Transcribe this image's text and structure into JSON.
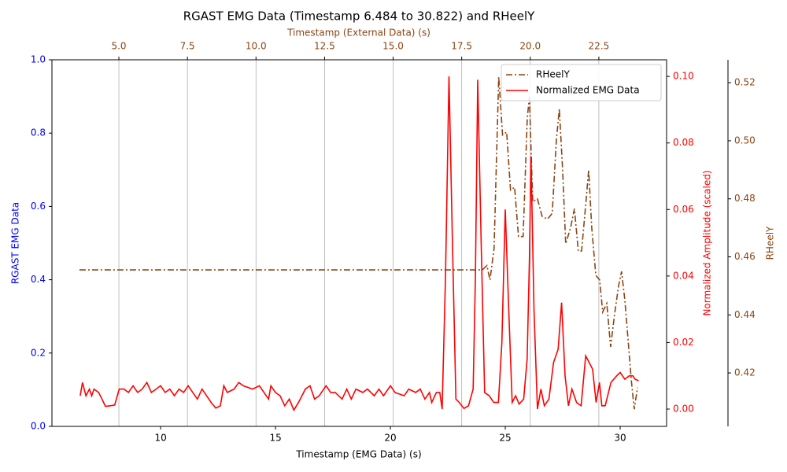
{
  "chart_data": {
    "type": "line",
    "title": "RGAST EMG Data (Timestamp 6.484 to 30.822) and RHeelY",
    "x_label": "Timestamp (EMG Data) (s)",
    "x2_label": "Timestamp (External Data) (s)",
    "y_label": "RGAST EMG Data",
    "y2_label": "Normalized Amplitude (scaled)",
    "y3_label": "RHeelY",
    "xlim": [
      5.27,
      32.02
    ],
    "xticks": [
      10,
      15,
      20,
      25,
      30
    ],
    "x2lim": [
      2.56,
      24.97
    ],
    "x2ticks": [
      {
        "value": 5,
        "label": "5.0"
      },
      7.5,
      {
        "value": 10,
        "label": "10.0"
      },
      12.5,
      {
        "value": 15,
        "label": "15.0"
      },
      17.5,
      {
        "value": 20,
        "label": "20.0"
      },
      22.5
    ],
    "ylim": [
      0,
      1
    ],
    "yticks": [
      {
        "value": 0,
        "label": "0.0"
      },
      0.2,
      0.4,
      0.6,
      0.8,
      {
        "value": 1,
        "label": "1.0"
      }
    ],
    "y2lim": [
      -0.0052,
      0.105
    ],
    "y2ticks": [
      {
        "value": 0,
        "label": "0.00"
      },
      {
        "value": 0.02,
        "label": "0.02"
      },
      {
        "value": 0.04,
        "label": "0.04"
      },
      {
        "value": 0.06,
        "label": "0.06"
      },
      {
        "value": 0.08,
        "label": "0.08"
      },
      {
        "value": 0.1,
        "label": "0.10"
      }
    ],
    "y3lim": [
      0.4016,
      0.5279
    ],
    "y3ticks": [
      0.42,
      0.44,
      0.46,
      0.48,
      {
        "value": 0.5,
        "label": "0.50"
      },
      0.52
    ],
    "grid": "x2",
    "legend": "upper right",
    "series": [
      {
        "name": "RHeelY",
        "color": "#8b4513",
        "linestyle": "dashdot",
        "xaxis": "x2",
        "axis": "y3",
        "x": [
          3.56,
          18.25,
          18.42,
          18.53,
          18.68,
          18.85,
          18.99,
          19.14,
          19.28,
          19.43,
          19.57,
          19.74,
          19.89,
          19.97,
          20.09,
          20.26,
          20.43,
          20.63,
          20.8,
          20.95,
          21.06,
          21.18,
          21.29,
          21.47,
          21.61,
          21.75,
          21.87,
          22.04,
          22.13,
          22.24,
          22.39,
          22.53,
          22.64,
          22.79,
          22.93,
          23.07,
          23.22,
          23.33,
          23.45,
          23.56,
          23.68,
          23.79,
          23.91
        ],
        "values": [
          0.4555,
          0.4555,
          0.457,
          0.452,
          0.463,
          0.522,
          0.502,
          0.503,
          0.483,
          0.484,
          0.467,
          0.467,
          0.508,
          0.515,
          0.479,
          0.48,
          0.474,
          0.473,
          0.475,
          0.5,
          0.511,
          0.49,
          0.4645,
          0.47,
          0.4766,
          0.462,
          0.462,
          0.48,
          0.49,
          0.47,
          0.4536,
          0.452,
          0.441,
          0.444,
          0.429,
          0.44,
          0.45,
          0.455,
          0.445,
          0.432,
          0.418,
          0.4075,
          0.415
        ]
      },
      {
        "name": "Normalized EMG Data",
        "color": "#ff0000",
        "linestyle": "solid",
        "xaxis": "x",
        "axis": "y2",
        "x": [
          6.5,
          6.6,
          6.75,
          6.9,
          7.0,
          7.1,
          7.3,
          7.45,
          7.6,
          7.8,
          8.0,
          8.2,
          8.4,
          8.6,
          8.8,
          9.0,
          9.2,
          9.4,
          9.6,
          9.8,
          10.0,
          10.2,
          10.4,
          10.6,
          10.8,
          11.0,
          11.2,
          11.4,
          11.6,
          11.8,
          12.0,
          12.2,
          12.4,
          12.6,
          12.75,
          12.9,
          13.2,
          13.4,
          13.6,
          14.0,
          14.3,
          14.5,
          14.7,
          14.8,
          15.0,
          15.2,
          15.4,
          15.6,
          15.8,
          16.0,
          16.3,
          16.5,
          16.7,
          16.9,
          17.2,
          17.4,
          17.6,
          17.9,
          18.1,
          18.3,
          18.5,
          18.8,
          19.0,
          19.3,
          19.5,
          19.7,
          20.0,
          20.2,
          20.6,
          20.8,
          21.1,
          21.3,
          21.5,
          21.7,
          21.8,
          22.0,
          22.15,
          22.25,
          22.4,
          22.55,
          22.7,
          22.85,
          23.0,
          23.2,
          23.4,
          23.6,
          23.7,
          23.8,
          23.95,
          24.1,
          24.3,
          24.5,
          24.7,
          24.85,
          25.0,
          25.15,
          25.3,
          25.45,
          25.6,
          25.8,
          25.95,
          26.05,
          26.12,
          26.25,
          26.4,
          26.55,
          26.7,
          26.9,
          27.1,
          27.3,
          27.45,
          27.6,
          27.75,
          27.9,
          28.1,
          28.3,
          28.5,
          28.65,
          28.8,
          28.95,
          29.1,
          29.2,
          29.35,
          29.6,
          29.85,
          30.0,
          30.2,
          30.4,
          30.55,
          30.65,
          30.8
        ],
        "values": [
          0.004,
          0.008,
          0.004,
          0.006,
          0.004,
          0.006,
          0.005,
          0.003,
          0.0008,
          0.001,
          0.0012,
          0.006,
          0.006,
          0.005,
          0.007,
          0.005,
          0.006,
          0.008,
          0.005,
          0.006,
          0.007,
          0.005,
          0.006,
          0.004,
          0.006,
          0.005,
          0.007,
          0.005,
          0.003,
          0.006,
          0.004,
          0.002,
          0.0003,
          0.001,
          0.007,
          0.005,
          0.006,
          0.008,
          0.007,
          0.006,
          0.007,
          0.005,
          0.003,
          0.007,
          0.005,
          0.004,
          0.001,
          0.003,
          -0.0003,
          0.002,
          0.006,
          0.007,
          0.003,
          0.004,
          0.007,
          0.005,
          0.005,
          0.003,
          0.006,
          0.003,
          0.006,
          0.005,
          0.006,
          0.004,
          0.006,
          0.004,
          0.007,
          0.005,
          0.004,
          0.006,
          0.005,
          0.006,
          0.003,
          0.005,
          0.002,
          0.005,
          0.005,
          0.0,
          0.04,
          0.1,
          0.05,
          0.003,
          0.002,
          0.0002,
          0.001,
          0.006,
          0.04,
          0.099,
          0.05,
          0.005,
          0.004,
          0.002,
          0.002,
          0.02,
          0.06,
          0.03,
          0.002,
          0.004,
          0.0015,
          0.003,
          0.015,
          0.045,
          0.076,
          0.03,
          0.0,
          0.006,
          0.001,
          0.003,
          0.014,
          0.018,
          0.032,
          0.01,
          0.001,
          0.006,
          0.002,
          0.001,
          0.016,
          0.014,
          0.012,
          0.002,
          0.008,
          0.001,
          0.001,
          0.008,
          0.01,
          0.011,
          0.009,
          0.01,
          0.01,
          0.009,
          0.0085
        ]
      }
    ]
  }
}
